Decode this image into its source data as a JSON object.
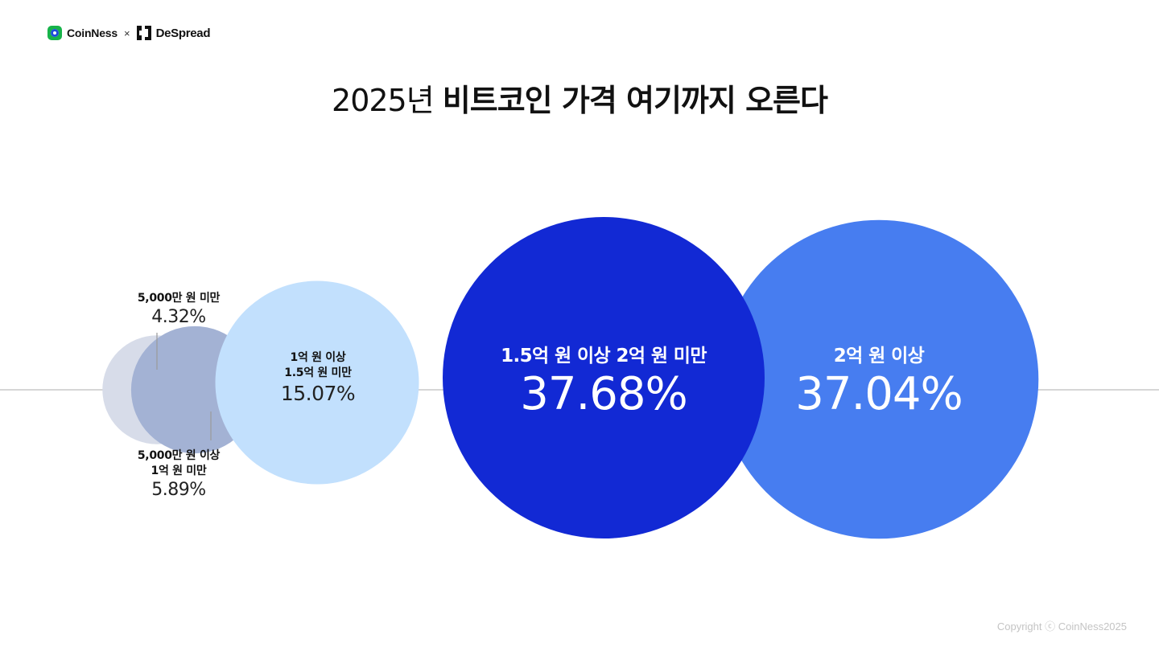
{
  "header": {
    "brand_left": "CoinNess",
    "separator": "×",
    "brand_right": "DeSpread"
  },
  "title": {
    "light": "2025년",
    "bold": "비트코인 가격 여기까지 오른다"
  },
  "chart_data": {
    "type": "bubble",
    "title": "2025년 비트코인 가격 여기까지 오른다",
    "unit": "%",
    "categories": [
      "5,000만 원 미만",
      "5,000만 원 이상 1억 원 미만",
      "1억 원 이상 1.5억 원 미만",
      "1.5억 원 이상 2억 원 미만",
      "2억 원 이상"
    ],
    "values": [
      4.32,
      5.89,
      15.07,
      37.68,
      37.04
    ],
    "value_labels": [
      "4.32%",
      "5.89%",
      "15.07%",
      "37.68%",
      "37.04%"
    ],
    "label_lines": [
      [
        "5,000만 원 미만"
      ],
      [
        "5,000만 원 이상",
        "1억 원 미만"
      ],
      [
        "1억 원 이상",
        "1.5억 원 미만"
      ],
      [
        "1.5억 원 이상 2억 원 미만"
      ],
      [
        "2억 원 이상"
      ]
    ],
    "colors": [
      "#d7dce9",
      "#a3b2d4",
      "#c2e0fd",
      "#1229d4",
      "#477df0"
    ],
    "baseline_color": "#c8c8c8",
    "leader_color": "#9a9a9a"
  },
  "footer": {
    "copyright": "Copyright ⓒ CoinNess2025"
  }
}
